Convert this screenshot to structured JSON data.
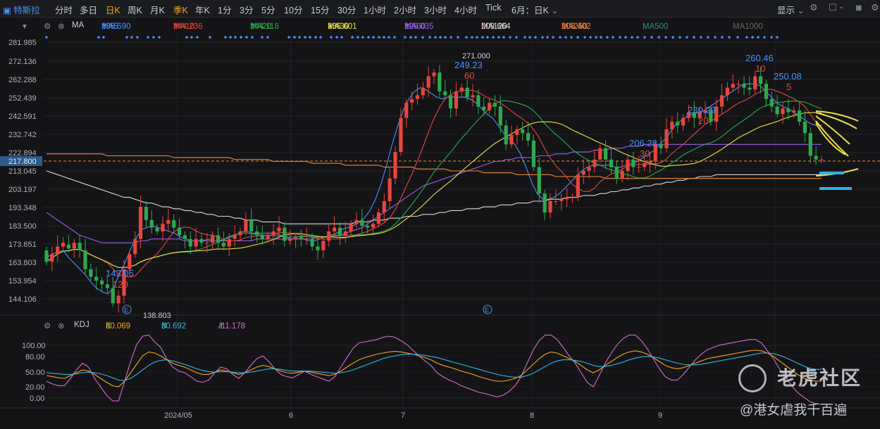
{
  "toolbar": {
    "symbol": "特斯拉",
    "periods": [
      "分时",
      "多日",
      "日K",
      "周K",
      "月K",
      "季K",
      "年K",
      "1分",
      "3分",
      "5分",
      "10分",
      "15分",
      "30分",
      "1小时",
      "2小时",
      "3小时",
      "4小时",
      "Tick"
    ],
    "active_period": "日K",
    "range_label": "6月：日K",
    "display_label": "显示"
  },
  "ma_legend": {
    "label": "MA",
    "items": [
      {
        "name": "MA5",
        "value": "236.590",
        "arrow": "▼",
        "color": "#4a90ff"
      },
      {
        "name": "MA10",
        "value": "244.236",
        "arrow": "▼",
        "color": "#e8453c"
      },
      {
        "name": "MA20",
        "value": "244.118",
        "arrow": "▼",
        "color": "#2fa84f"
      },
      {
        "name": "MA30",
        "value": "236.601",
        "arrow": "▲",
        "color": "#e8e04a"
      },
      {
        "name": "MA60",
        "value": "226.035",
        "arrow": "▼",
        "color": "#9a5ff0"
      },
      {
        "name": "MA120",
        "value": "209.664",
        "arrow": "▲",
        "color": "#d8d8d8"
      },
      {
        "name": "MA250",
        "value": "208.402",
        "arrow": "▲",
        "color": "#f08a3c"
      },
      {
        "name": "MA500",
        "value": "",
        "arrow": "",
        "color": "#3a8a8a"
      },
      {
        "name": "MA1000",
        "value": "",
        "arrow": "",
        "color": "#555555"
      }
    ]
  },
  "kdj_legend": {
    "label": "KDJ",
    "items": [
      {
        "name": "K",
        "value": "30.069",
        "arrow": "▼",
        "color": "#f5a623"
      },
      {
        "name": "D",
        "value": "50.692",
        "arrow": "▼",
        "color": "#33b5e5"
      },
      {
        "name": "J",
        "value": "-11.178",
        "arrow": "▼",
        "color": "#d36bd6"
      }
    ]
  },
  "chart_data": {
    "type": "candlestick",
    "price_axis_ticks": [
      "281.985",
      "272.136",
      "262.288",
      "252.439",
      "242.591",
      "232.742",
      "222.894",
      "213.045",
      "203.197",
      "193.348",
      "183.500",
      "173.651",
      "163.803",
      "153.954",
      "144.106"
    ],
    "price_range": [
      136.5,
      284.5
    ],
    "current_price": "217.800",
    "x_axis_labels": [
      "2024/05",
      "6",
      "7",
      "8",
      "9"
    ],
    "kdj_axis_ticks": [
      "100.00",
      "80.00",
      "50.00",
      "20.00",
      "0.00"
    ],
    "annotations": [
      {
        "text": "271.000",
        "x_label": "7"
      },
      {
        "text": "249.23",
        "color": "#4a90ff"
      },
      {
        "text": "60",
        "color": "#e8453c"
      },
      {
        "text": "142.05",
        "color": "#4a90ff"
      },
      {
        "text": "120",
        "color": "#e8453c"
      },
      {
        "text": "138.803"
      },
      {
        "text": "206.28",
        "color": "#4a90ff"
      },
      {
        "text": "30",
        "color": "#e8453c"
      },
      {
        "text": "230.29",
        "color": "#4a90ff"
      },
      {
        "text": "20",
        "color": "#e8453c"
      },
      {
        "text": "260.46",
        "color": "#4a90ff"
      },
      {
        "text": "10",
        "color": "#e8453c"
      },
      {
        "text": "250.08",
        "color": "#4a90ff"
      },
      {
        "text": "5",
        "color": "#e8453c"
      }
    ],
    "candles_open": [
      170,
      164,
      168,
      172,
      173,
      171,
      174,
      170,
      160,
      156,
      154,
      152,
      150,
      142,
      146,
      160,
      168,
      176,
      193,
      186,
      182,
      180,
      184,
      186,
      182,
      178,
      176,
      172,
      176,
      174,
      174,
      178,
      174,
      172,
      176,
      178,
      180,
      186,
      180,
      178,
      176,
      178,
      180,
      182,
      175,
      176,
      177,
      176,
      176,
      172,
      170,
      175,
      180,
      182,
      178,
      180,
      184,
      186,
      183,
      182,
      184,
      190,
      196,
      208,
      222,
      240,
      248,
      250,
      252,
      256,
      262,
      264,
      254,
      252,
      245,
      254,
      256,
      251,
      252,
      246,
      244,
      248,
      246,
      236,
      226,
      231,
      234,
      232,
      228,
      214,
      200,
      190,
      196,
      196,
      197,
      198,
      198,
      210,
      212,
      214,
      218,
      224,
      218,
      214,
      208,
      212,
      218,
      214,
      214,
      216,
      217,
      226,
      224,
      234,
      238,
      236,
      240,
      243,
      240,
      243,
      244,
      238,
      246,
      252,
      256,
      258,
      258,
      256,
      255,
      262,
      258,
      250,
      246,
      242,
      245,
      243,
      244,
      238,
      232,
      220,
      218
    ],
    "candles_close": [
      164,
      168,
      172,
      174,
      171,
      174,
      170,
      160,
      156,
      154,
      152,
      150,
      142,
      146,
      160,
      168,
      176,
      193,
      186,
      182,
      180,
      184,
      186,
      182,
      178,
      176,
      172,
      176,
      174,
      174,
      178,
      174,
      172,
      176,
      178,
      180,
      186,
      180,
      178,
      176,
      178,
      180,
      182,
      175,
      176,
      177,
      176,
      176,
      172,
      170,
      175,
      180,
      182,
      178,
      180,
      184,
      186,
      183,
      182,
      184,
      190,
      196,
      208,
      222,
      240,
      248,
      250,
      252,
      256,
      262,
      264,
      254,
      252,
      245,
      254,
      256,
      251,
      252,
      246,
      244,
      248,
      246,
      236,
      226,
      231,
      234,
      232,
      228,
      214,
      200,
      190,
      196,
      196,
      197,
      198,
      198,
      210,
      212,
      214,
      218,
      224,
      218,
      214,
      208,
      212,
      218,
      214,
      214,
      216,
      217,
      226,
      224,
      234,
      238,
      236,
      240,
      243,
      240,
      243,
      244,
      238,
      246,
      252,
      256,
      258,
      258,
      256,
      255,
      262,
      258,
      250,
      246,
      242,
      245,
      243,
      244,
      238,
      232,
      220,
      218,
      218
    ],
    "ma_series": {
      "MA5": [
        166,
        168,
        169,
        170,
        166,
        163,
        160,
        157,
        153,
        150,
        148,
        147,
        150,
        157,
        163,
        170,
        176,
        181,
        182,
        183,
        182,
        181,
        180,
        179,
        177,
        176,
        175,
        175,
        175,
        176,
        175,
        175,
        176,
        177,
        178,
        180,
        180,
        179,
        179,
        179,
        179,
        179,
        178,
        177,
        176,
        176,
        176,
        175,
        175,
        176,
        177,
        178,
        179,
        181,
        182,
        183,
        185,
        187,
        191,
        197,
        205,
        215,
        226,
        236,
        244,
        250,
        254,
        256,
        255,
        253,
        251,
        250,
        251,
        251,
        251,
        251,
        250,
        248,
        245,
        242,
        240,
        236,
        232,
        229,
        226,
        221,
        214,
        206,
        200,
        197,
        197,
        198,
        200,
        203,
        206,
        209,
        212,
        214,
        215,
        215,
        215,
        215,
        214,
        214,
        215,
        216,
        217,
        219,
        221,
        223,
        226,
        229,
        233,
        237,
        239,
        241,
        242,
        243,
        244,
        246,
        248,
        250,
        252,
        254,
        256,
        258,
        258,
        258,
        257,
        254,
        251,
        248,
        246,
        245,
        243,
        241,
        239,
        237,
        236,
        236
      ],
      "MA60": [
        190,
        188,
        186,
        184,
        182,
        180,
        178,
        177,
        176,
        175,
        174,
        174,
        174,
        174,
        174,
        174,
        174,
        175,
        175,
        176,
        176,
        176,
        176,
        176,
        176,
        175,
        175,
        175,
        175,
        175,
        175,
        175,
        175,
        175,
        175,
        175,
        175,
        175,
        176,
        176,
        176,
        176,
        176,
        176,
        176,
        176,
        176,
        176,
        176,
        177,
        177,
        177,
        178,
        178,
        179,
        180,
        181,
        182,
        184,
        186,
        188,
        190,
        192,
        194,
        196,
        198,
        200,
        202,
        204,
        205,
        206,
        207,
        208,
        209,
        210,
        211,
        212,
        213,
        214,
        215,
        216,
        217,
        217,
        218,
        218,
        219,
        219,
        219,
        219,
        220,
        220,
        220,
        221,
        221,
        221,
        222,
        222,
        222,
        222,
        223,
        223,
        223,
        224,
        224,
        224,
        225,
        225,
        225,
        226,
        226,
        226,
        226,
        226,
        226,
        226,
        226,
        226,
        226,
        226,
        226,
        226,
        226,
        226,
        226,
        226,
        226,
        226,
        226,
        226,
        226,
        226,
        226,
        226,
        226,
        226,
        226,
        226,
        226,
        226,
        226,
        226
      ],
      "MA120": [
        212,
        211,
        210,
        209,
        208,
        207,
        206,
        205,
        204,
        203,
        202,
        201,
        200,
        199,
        198,
        198,
        197,
        196,
        195,
        195,
        194,
        193,
        193,
        192,
        192,
        191,
        191,
        190,
        190,
        189,
        189,
        188,
        188,
        188,
        187,
        187,
        186,
        186,
        186,
        185,
        185,
        185,
        185,
        184,
        184,
        184,
        184,
        184,
        184,
        184,
        184,
        184,
        184,
        184,
        184,
        184,
        185,
        185,
        185,
        186,
        186,
        186,
        187,
        187,
        187,
        188,
        188,
        188,
        189,
        189,
        189,
        190,
        190,
        191,
        191,
        191,
        192,
        192,
        192,
        193,
        193,
        193,
        194,
        194,
        194,
        195,
        195,
        195,
        196,
        196,
        196,
        197,
        197,
        197,
        198,
        198,
        198,
        199,
        199,
        199,
        200,
        200,
        201,
        201,
        202,
        202,
        203,
        203,
        204,
        204,
        205,
        205,
        206,
        206,
        207,
        207,
        208,
        208,
        209,
        209,
        209,
        210,
        210,
        210,
        210,
        210,
        210,
        210,
        210,
        210,
        210,
        210,
        210,
        210,
        210,
        210,
        210,
        210,
        210,
        210,
        210
      ],
      "MA250": [
        221,
        221,
        221,
        221,
        221,
        221,
        221,
        221,
        221,
        221,
        221,
        220,
        220,
        220,
        220,
        220,
        220,
        220,
        220,
        220,
        220,
        220,
        220,
        219,
        219,
        219,
        219,
        219,
        219,
        219,
        219,
        219,
        219,
        219,
        218,
        218,
        218,
        218,
        218,
        218,
        218,
        217,
        217,
        217,
        217,
        217,
        217,
        217,
        216,
        216,
        216,
        216,
        216,
        216,
        215,
        215,
        215,
        215,
        215,
        215,
        215,
        214,
        214,
        214,
        214,
        214,
        214,
        213,
        213,
        213,
        213,
        213,
        213,
        212,
        212,
        212,
        212,
        212,
        212,
        211,
        211,
        211,
        211,
        211,
        211,
        210,
        210,
        210,
        210,
        210,
        210,
        210,
        209,
        209,
        209,
        209,
        209,
        209,
        209,
        209,
        209,
        208,
        208,
        208,
        208,
        208,
        208,
        208,
        208,
        208,
        208,
        208,
        208,
        208,
        208,
        208,
        208,
        208,
        208,
        208,
        208,
        208,
        208,
        208,
        208,
        208,
        208,
        208,
        208,
        208,
        208,
        208,
        208,
        208,
        208,
        208,
        208,
        208,
        208,
        208,
        208
      ]
    },
    "kdj_series": {
      "K": [
        40,
        38,
        36,
        35,
        40,
        45,
        50,
        48,
        42,
        35,
        28,
        22,
        20,
        30,
        45,
        60,
        75,
        82,
        80,
        75,
        68,
        62,
        58,
        55,
        50,
        45,
        42,
        42,
        46,
        50,
        48,
        45,
        42,
        45,
        50,
        55,
        58,
        56,
        52,
        48,
        45,
        44,
        46,
        48,
        46,
        44,
        42,
        40,
        42,
        48,
        55,
        62,
        68,
        72,
        75,
        78,
        80,
        82,
        83,
        82,
        80,
        78,
        75,
        72,
        68,
        62,
        58,
        55,
        52,
        48,
        45,
        42,
        38,
        35,
        32,
        30,
        30,
        32,
        35,
        40,
        50,
        60,
        70,
        78,
        82,
        80,
        75,
        70,
        65,
        58,
        50,
        45,
        50,
        58,
        65,
        72,
        78,
        82,
        84,
        82,
        78,
        72,
        65,
        58,
        54,
        52,
        54,
        58,
        62,
        66,
        70,
        72,
        74,
        76,
        78,
        80,
        82,
        84,
        85,
        84,
        80,
        74,
        66,
        58,
        50,
        42,
        36,
        32,
        30,
        30
      ],
      "D": [
        45,
        44,
        43,
        42,
        42,
        43,
        45,
        46,
        45,
        43,
        40,
        36,
        32,
        31,
        35,
        42,
        50,
        58,
        64,
        67,
        68,
        66,
        63,
        60,
        56,
        52,
        49,
        47,
        46,
        47,
        47,
        46,
        45,
        45,
        46,
        48,
        50,
        52,
        52,
        51,
        49,
        48,
        48,
        48,
        48,
        47,
        46,
        45,
        44,
        45,
        47,
        50,
        54,
        58,
        62,
        66,
        70,
        73,
        75,
        77,
        78,
        78,
        77,
        76,
        74,
        72,
        69,
        66,
        63,
        60,
        57,
        54,
        51,
        48,
        45,
        42,
        40,
        38,
        37,
        37,
        40,
        44,
        50,
        56,
        62,
        66,
        68,
        68,
        67,
        65,
        62,
        58,
        56,
        56,
        58,
        61,
        64,
        68,
        71,
        73,
        74,
        73,
        71,
        68,
        65,
        62,
        60,
        59,
        59,
        60,
        62,
        64,
        66,
        68,
        70,
        72,
        74,
        76,
        78,
        80,
        80,
        79,
        76,
        72,
        67,
        62,
        57,
        53,
        51,
        51
      ],
      "J": [
        30,
        25,
        22,
        22,
        35,
        50,
        62,
        55,
        35,
        20,
        5,
        -5,
        -5,
        30,
        65,
        95,
        110,
        112,
        100,
        90,
        70,
        55,
        48,
        45,
        38,
        30,
        28,
        32,
        45,
        55,
        52,
        42,
        35,
        45,
        58,
        70,
        75,
        65,
        52,
        42,
        38,
        36,
        42,
        48,
        42,
        38,
        34,
        30,
        38,
        55,
        72,
        88,
        98,
        100,
        102,
        104,
        108,
        110,
        108,
        102,
        95,
        85,
        75,
        66,
        58,
        45,
        38,
        32,
        28,
        22,
        18,
        14,
        10,
        8,
        5,
        2,
        5,
        12,
        22,
        38,
        62,
        85,
        102,
        112,
        112,
        104,
        90,
        75,
        62,
        45,
        28,
        20,
        40,
        62,
        80,
        95,
        106,
        112,
        112,
        102,
        88,
        70,
        52,
        38,
        32,
        32,
        42,
        55,
        68,
        78,
        86,
        90,
        94,
        96,
        98,
        100,
        102,
        104,
        104,
        98,
        84,
        70,
        52,
        38,
        22,
        10,
        2,
        -6,
        -10,
        -11
      ]
    }
  }
}
